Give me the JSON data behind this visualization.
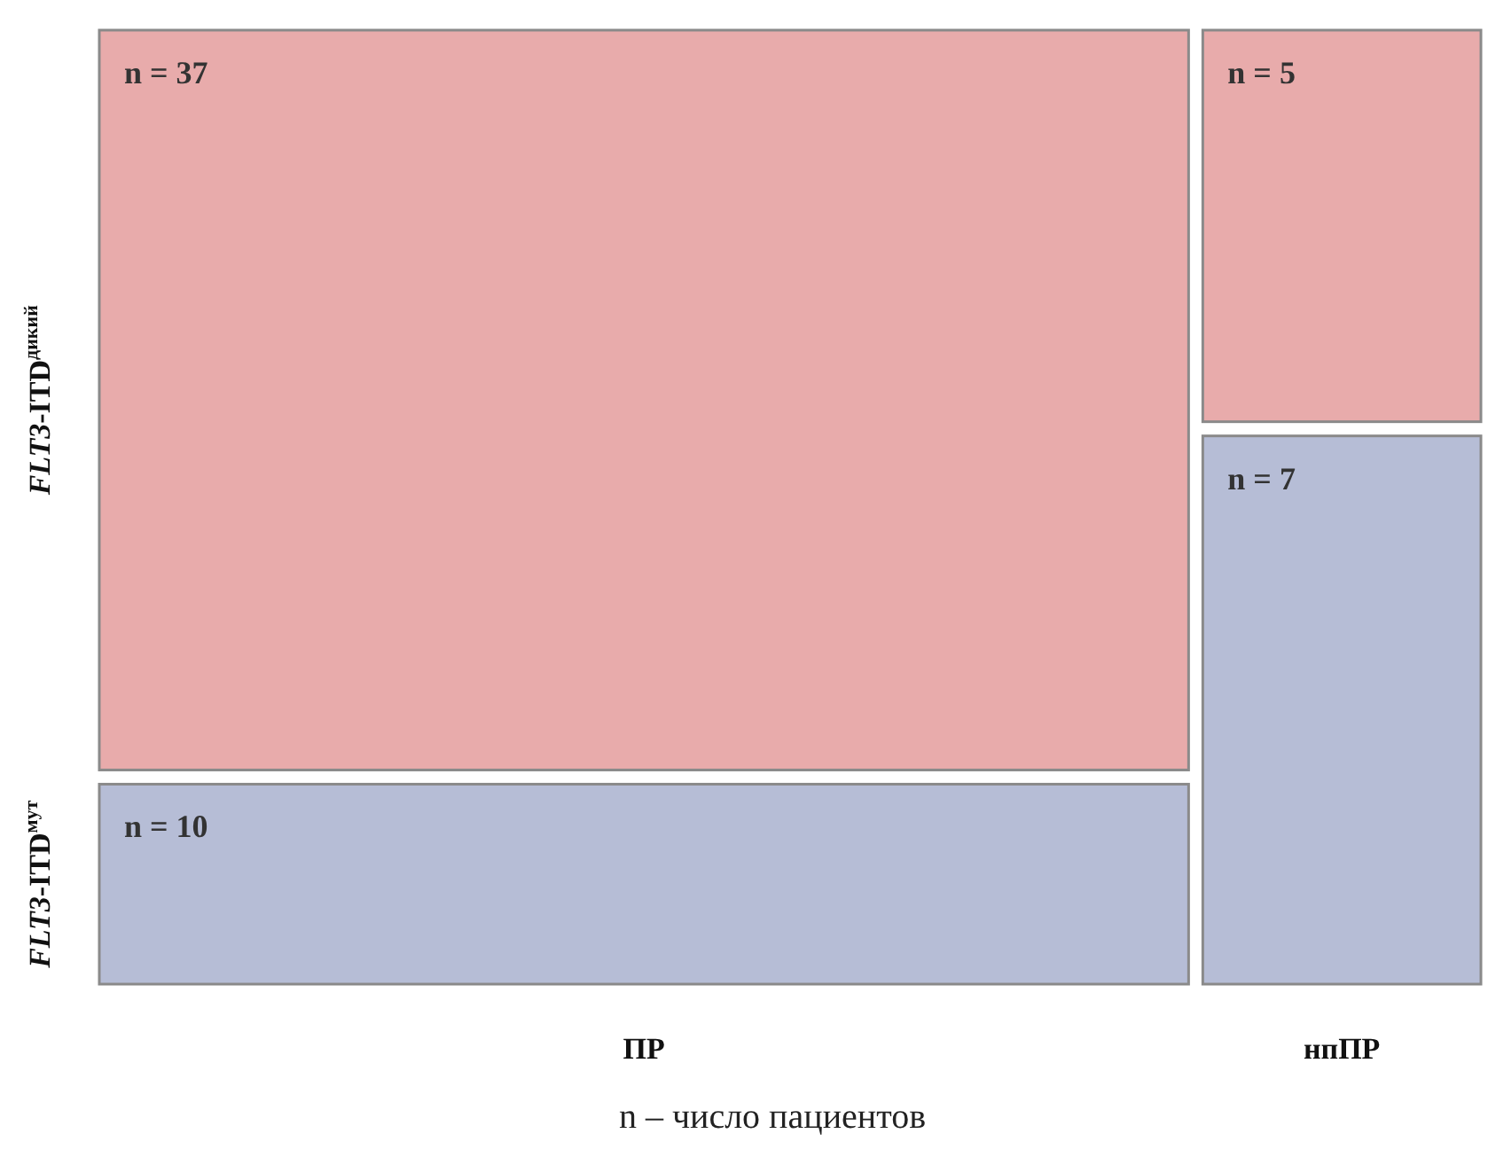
{
  "chart_data": {
    "type": "other",
    "categories": [
      "ПР",
      "нпПР"
    ],
    "series": [
      {
        "name": "FLT3-ITD$^{дикий}$",
        "color": "#e8abab",
        "values": [
          37,
          5
        ],
        "value_labels": [
          "n = 37",
          "n = 5"
        ]
      },
      {
        "name": "FLT3-ITD$^{мут}$",
        "color": "#b6bdd6",
        "values": [
          10,
          7
        ],
        "value_labels": [
          "n = 10",
          "n = 7"
        ]
      }
    ],
    "annotations": [
      "n – число пациентов"
    ]
  }
}
